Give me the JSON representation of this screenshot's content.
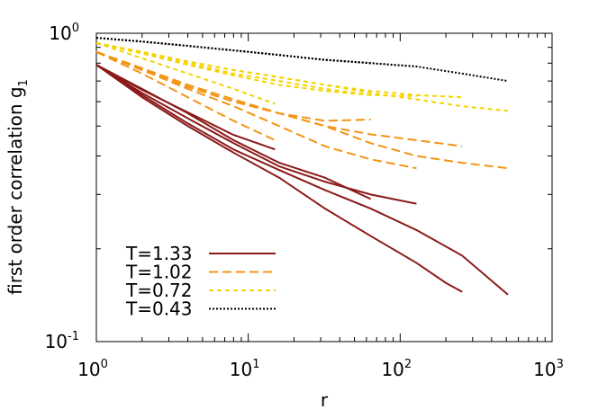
{
  "chart_data": {
    "type": "line",
    "xlabel": "r",
    "ylabel": {
      "text": "first order correlation g",
      "subscript": "1"
    },
    "log_x": true,
    "log_y": true,
    "xlim": [
      1,
      1000
    ],
    "ylim": [
      0.1,
      1
    ],
    "xticks": [
      {
        "value": 1,
        "label": "10",
        "exponent": "0"
      },
      {
        "value": 10,
        "label": "10",
        "exponent": "1"
      },
      {
        "value": 100,
        "label": "10",
        "exponent": "2"
      },
      {
        "value": 1000,
        "label": "10",
        "exponent": "3"
      }
    ],
    "yticks": [
      {
        "value": 0.1,
        "label": "10",
        "exponent": "-1"
      },
      {
        "value": 1,
        "label": "10",
        "exponent": "0"
      }
    ],
    "xminorticks": [
      2,
      3,
      4,
      5,
      6,
      7,
      8,
      9,
      20,
      30,
      40,
      50,
      60,
      70,
      80,
      90,
      200,
      300,
      400,
      500,
      600,
      700,
      800,
      900
    ],
    "yminorticks": [
      0.2,
      0.3,
      0.4,
      0.5,
      0.6,
      0.7,
      0.8,
      0.9
    ],
    "legend": "bottom-left",
    "series": [
      {
        "name": "T=1.33",
        "color": "#8b1a1a",
        "dash": "solid",
        "curves": [
          {
            "x": [
              1,
              2,
              4,
              8,
              15
            ],
            "values": [
              0.79,
              0.655,
              0.554,
              0.468,
              0.42
            ]
          },
          {
            "x": [
              1,
              2,
              4,
              8,
              16,
              32,
              64
            ],
            "values": [
              0.79,
              0.66,
              0.55,
              0.45,
              0.38,
              0.34,
              0.29
            ]
          },
          {
            "x": [
              1,
              2,
              4,
              8,
              16,
              32,
              64,
              128
            ],
            "values": [
              0.79,
              0.64,
              0.53,
              0.44,
              0.37,
              0.33,
              0.3,
              0.28
            ]
          },
          {
            "x": [
              1,
              2,
              4,
              8,
              16,
              32,
              64,
              128,
              200,
              256
            ],
            "values": [
              0.79,
              0.62,
              0.5,
              0.41,
              0.34,
              0.27,
              0.22,
              0.18,
              0.155,
              0.145
            ]
          },
          {
            "x": [
              1,
              2,
              4,
              8,
              16,
              32,
              64,
              128,
              256,
              512
            ],
            "values": [
              0.79,
              0.63,
              0.51,
              0.42,
              0.36,
              0.31,
              0.27,
              0.23,
              0.19,
              0.142
            ]
          }
        ]
      },
      {
        "name": "T=1.02",
        "color": "#f39414",
        "dash": "10,5",
        "curves": [
          {
            "x": [
              1,
              2,
              4,
              8,
              15
            ],
            "values": [
              0.87,
              0.74,
              0.62,
              0.52,
              0.45
            ]
          },
          {
            "x": [
              1,
              2,
              4,
              8,
              16,
              32,
              64
            ],
            "values": [
              0.87,
              0.76,
              0.67,
              0.6,
              0.55,
              0.52,
              0.525
            ]
          },
          {
            "x": [
              1,
              2,
              4,
              8,
              16,
              32,
              64,
              128
            ],
            "values": [
              0.87,
              0.76,
              0.66,
              0.58,
              0.5,
              0.43,
              0.39,
              0.365
            ]
          },
          {
            "x": [
              1,
              2,
              4,
              8,
              16,
              32,
              64,
              128,
              256
            ],
            "values": [
              0.87,
              0.77,
              0.68,
              0.61,
              0.55,
              0.5,
              0.47,
              0.45,
              0.43
            ]
          },
          {
            "x": [
              1,
              2,
              4,
              8,
              16,
              32,
              64,
              128,
              256,
              512
            ],
            "values": [
              0.87,
              0.77,
              0.68,
              0.61,
              0.55,
              0.5,
              0.44,
              0.4,
              0.38,
              0.365
            ]
          }
        ]
      },
      {
        "name": "T=0.72",
        "color": "#f5d400",
        "dash": "5,4",
        "curves": [
          {
            "x": [
              1,
              2,
              4,
              8,
              15
            ],
            "values": [
              0.93,
              0.83,
              0.74,
              0.66,
              0.59
            ]
          },
          {
            "x": [
              1,
              2,
              4,
              8,
              16,
              32,
              64
            ],
            "values": [
              0.93,
              0.86,
              0.79,
              0.73,
              0.68,
              0.65,
              0.63
            ]
          },
          {
            "x": [
              1,
              2,
              4,
              8,
              16,
              32,
              64,
              128
            ],
            "values": [
              0.93,
              0.86,
              0.8,
              0.74,
              0.7,
              0.66,
              0.63,
              0.625
            ]
          },
          {
            "x": [
              1,
              2,
              4,
              8,
              16,
              32,
              64,
              128,
              256
            ],
            "values": [
              0.93,
              0.87,
              0.81,
              0.76,
              0.72,
              0.68,
              0.65,
              0.63,
              0.62
            ]
          },
          {
            "x": [
              1,
              2,
              4,
              8,
              16,
              32,
              64,
              128,
              256,
              512
            ],
            "values": [
              0.93,
              0.87,
              0.81,
              0.76,
              0.72,
              0.68,
              0.64,
              0.61,
              0.58,
              0.56
            ]
          }
        ]
      },
      {
        "name": "T=0.43",
        "color": "#000000",
        "dash": "2,2",
        "curves": [
          {
            "x": [
              1,
              2,
              4,
              8,
              16,
              32,
              64
            ],
            "values": [
              0.967,
              0.94,
              0.91,
              0.88,
              0.85,
              0.82,
              0.8
            ]
          },
          {
            "x": [
              1,
              2,
              4,
              8,
              16,
              32,
              64,
              128
            ],
            "values": [
              0.967,
              0.94,
              0.91,
              0.88,
              0.85,
              0.82,
              0.8,
              0.78
            ]
          },
          {
            "x": [
              1,
              2,
              4,
              8,
              16,
              32,
              64,
              128,
              256,
              512
            ],
            "values": [
              0.967,
              0.94,
              0.91,
              0.88,
              0.85,
              0.82,
              0.8,
              0.78,
              0.74,
              0.7
            ]
          }
        ]
      }
    ]
  }
}
